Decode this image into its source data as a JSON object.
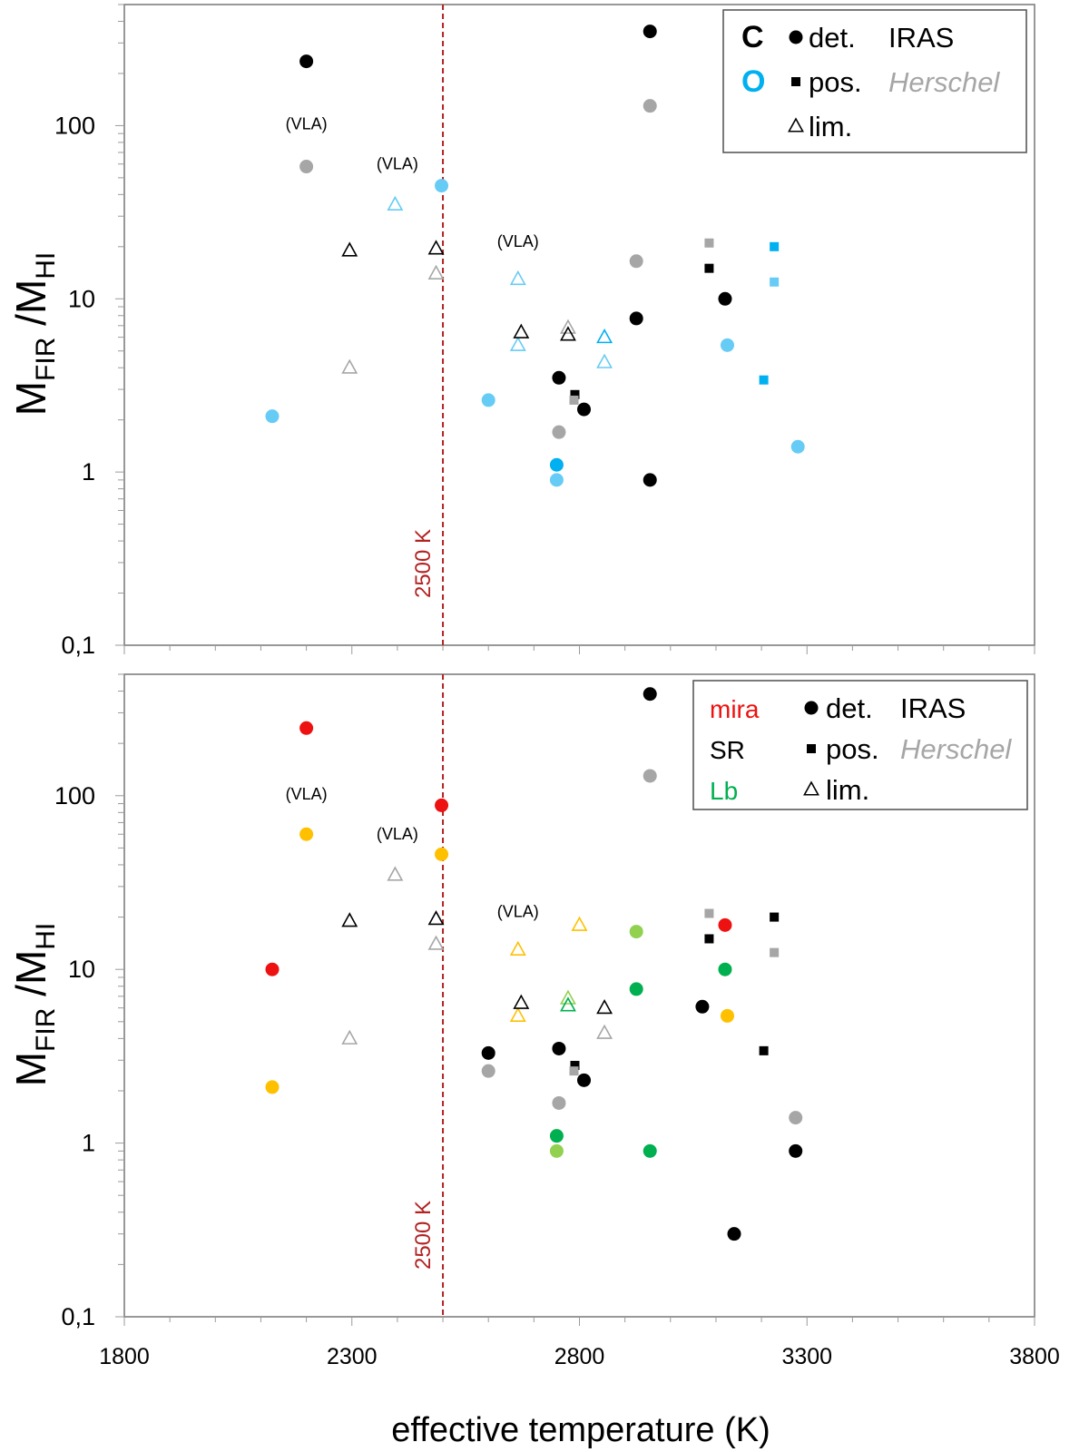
{
  "chart_data": {
    "type": "scatter",
    "xlabel": "effective temperature   (K)",
    "xlim": [
      1800,
      3800
    ],
    "x_ticks": [
      "1800",
      "2300",
      "2800",
      "3300",
      "3800"
    ],
    "ylabel_main": "M",
    "ylabel_sub1": "FIR",
    "ylabel_slash": " /M",
    "ylabel_sub2": "HI",
    "yscale": "log",
    "ylim": [
      0.1,
      500
    ],
    "y_ticks": [
      "0,1",
      "1",
      "10",
      "100"
    ],
    "reference_line": {
      "x": 2500,
      "label": "2500 K",
      "color": "#b22222"
    },
    "colors": {
      "black": "#000000",
      "grey": "#a6a6a6",
      "blue": "#00b0f0",
      "lightblue": "#66ccf5",
      "red": "#ee1111",
      "yellow": "#ffc000",
      "green": "#00b050",
      "lightgreen": "#92d050"
    },
    "panels": [
      {
        "name": "chemistry",
        "legend": {
          "rows": [
            {
              "key": "C",
              "key_color": "#000000",
              "marker": "circle",
              "text": "det.",
              "source": "IRAS",
              "source_style": "normal",
              "source_color": "#000000"
            },
            {
              "key": "O",
              "key_color": "#00b0f0",
              "marker": "square",
              "text": "pos.",
              "source": "Herschel",
              "source_style": "italic",
              "source_color": "#a6a6a6"
            },
            {
              "key": "",
              "key_color": "#000000",
              "marker": "triangle",
              "text": "lim.",
              "source": "",
              "source_style": "normal",
              "source_color": "#000000"
            }
          ]
        },
        "annotations": [
          {
            "text": "(VLA)",
            "x": 2200,
            "y": 95
          },
          {
            "text": "(VLA)",
            "x": 2400,
            "y": 56
          },
          {
            "text": "(VLA)",
            "x": 2665,
            "y": 20
          }
        ],
        "points": [
          {
            "x": 2200,
            "y": 235,
            "m": "circle",
            "c": "black"
          },
          {
            "x": 2200,
            "y": 58,
            "m": "circle",
            "c": "grey"
          },
          {
            "x": 2125,
            "y": 2.1,
            "m": "circle",
            "c": "lightblue"
          },
          {
            "x": 2295,
            "y": 19,
            "m": "triangle",
            "c": "black"
          },
          {
            "x": 2295,
            "y": 4.0,
            "m": "triangle",
            "c": "grey"
          },
          {
            "x": 2395,
            "y": 35,
            "m": "triangle",
            "c": "lightblue"
          },
          {
            "x": 2485,
            "y": 19.5,
            "m": "triangle",
            "c": "black"
          },
          {
            "x": 2485,
            "y": 14,
            "m": "triangle",
            "c": "grey"
          },
          {
            "x": 2497,
            "y": 45,
            "m": "circle",
            "c": "lightblue"
          },
          {
            "x": 2600,
            "y": 2.6,
            "m": "circle",
            "c": "lightblue"
          },
          {
            "x": 2665,
            "y": 13,
            "m": "triangle",
            "c": "lightblue"
          },
          {
            "x": 2665,
            "y": 5.4,
            "m": "triangle",
            "c": "lightblue"
          },
          {
            "x": 2672,
            "y": 6.4,
            "m": "triangle",
            "c": "black"
          },
          {
            "x": 2755,
            "y": 3.5,
            "m": "circle",
            "c": "black"
          },
          {
            "x": 2755,
            "y": 1.7,
            "m": "circle",
            "c": "grey"
          },
          {
            "x": 2750,
            "y": 1.1,
            "m": "circle",
            "c": "blue"
          },
          {
            "x": 2750,
            "y": 0.9,
            "m": "circle",
            "c": "lightblue"
          },
          {
            "x": 2775,
            "y": 6.8,
            "m": "triangle",
            "c": "grey"
          },
          {
            "x": 2775,
            "y": 6.2,
            "m": "triangle",
            "c": "black"
          },
          {
            "x": 2790,
            "y": 2.8,
            "m": "square",
            "c": "black"
          },
          {
            "x": 2788,
            "y": 2.6,
            "m": "square",
            "c": "grey"
          },
          {
            "x": 2810,
            "y": 2.3,
            "m": "circle",
            "c": "black"
          },
          {
            "x": 2855,
            "y": 6.0,
            "m": "triangle",
            "c": "blue"
          },
          {
            "x": 2855,
            "y": 4.3,
            "m": "triangle",
            "c": "lightblue"
          },
          {
            "x": 2925,
            "y": 16.5,
            "m": "circle",
            "c": "grey"
          },
          {
            "x": 2925,
            "y": 7.7,
            "m": "circle",
            "c": "black"
          },
          {
            "x": 2955,
            "y": 350,
            "m": "circle",
            "c": "black"
          },
          {
            "x": 2955,
            "y": 130,
            "m": "circle",
            "c": "grey"
          },
          {
            "x": 2955,
            "y": 0.9,
            "m": "circle",
            "c": "black"
          },
          {
            "x": 3085,
            "y": 21,
            "m": "square",
            "c": "grey"
          },
          {
            "x": 3085,
            "y": 15,
            "m": "square",
            "c": "black"
          },
          {
            "x": 3120,
            "y": 10,
            "m": "circle",
            "c": "black"
          },
          {
            "x": 3125,
            "y": 5.4,
            "m": "circle",
            "c": "lightblue"
          },
          {
            "x": 3205,
            "y": 3.4,
            "m": "square",
            "c": "blue"
          },
          {
            "x": 3228,
            "y": 20,
            "m": "square",
            "c": "blue"
          },
          {
            "x": 3228,
            "y": 12.5,
            "m": "square",
            "c": "lightblue"
          },
          {
            "x": 3280,
            "y": 1.4,
            "m": "circle",
            "c": "lightblue"
          }
        ]
      },
      {
        "name": "variability",
        "legend": {
          "rows": [
            {
              "key": "mira",
              "key_color": "#ee1111",
              "marker": "circle",
              "text": "det.",
              "source": "IRAS",
              "source_style": "normal",
              "source_color": "#000000"
            },
            {
              "key": "SR",
              "key_color": "#000000",
              "marker": "square",
              "text": "pos.",
              "source": "Herschel",
              "source_style": "italic",
              "source_color": "#a6a6a6"
            },
            {
              "key": "Lb",
              "key_color": "#00b050",
              "marker": "triangle",
              "text": "lim.",
              "source": "",
              "source_style": "normal",
              "source_color": "#000000"
            }
          ]
        },
        "annotations": [
          {
            "text": "(VLA)",
            "x": 2200,
            "y": 95
          },
          {
            "text": "(VLA)",
            "x": 2400,
            "y": 56
          },
          {
            "text": "(VLA)",
            "x": 2665,
            "y": 20
          }
        ],
        "points": [
          {
            "x": 2200,
            "y": 245,
            "m": "circle",
            "c": "red"
          },
          {
            "x": 2200,
            "y": 60,
            "m": "circle",
            "c": "yellow"
          },
          {
            "x": 2125,
            "y": 10,
            "m": "circle",
            "c": "red"
          },
          {
            "x": 2125,
            "y": 2.1,
            "m": "circle",
            "c": "yellow"
          },
          {
            "x": 2295,
            "y": 19,
            "m": "triangle",
            "c": "black"
          },
          {
            "x": 2295,
            "y": 4.0,
            "m": "triangle",
            "c": "grey"
          },
          {
            "x": 2395,
            "y": 35,
            "m": "triangle",
            "c": "grey"
          },
          {
            "x": 2485,
            "y": 19.5,
            "m": "triangle",
            "c": "black"
          },
          {
            "x": 2485,
            "y": 14,
            "m": "triangle",
            "c": "grey"
          },
          {
            "x": 2497,
            "y": 88,
            "m": "circle",
            "c": "red"
          },
          {
            "x": 2497,
            "y": 46,
            "m": "circle",
            "c": "yellow"
          },
          {
            "x": 2600,
            "y": 3.3,
            "m": "circle",
            "c": "black"
          },
          {
            "x": 2600,
            "y": 2.6,
            "m": "circle",
            "c": "grey"
          },
          {
            "x": 2665,
            "y": 13,
            "m": "triangle",
            "c": "yellow"
          },
          {
            "x": 2665,
            "y": 5.4,
            "m": "triangle",
            "c": "yellow"
          },
          {
            "x": 2672,
            "y": 6.4,
            "m": "triangle",
            "c": "black"
          },
          {
            "x": 2755,
            "y": 3.5,
            "m": "circle",
            "c": "black"
          },
          {
            "x": 2755,
            "y": 1.7,
            "m": "circle",
            "c": "grey"
          },
          {
            "x": 2750,
            "y": 1.1,
            "m": "circle",
            "c": "green"
          },
          {
            "x": 2750,
            "y": 0.9,
            "m": "circle",
            "c": "lightgreen"
          },
          {
            "x": 2775,
            "y": 6.8,
            "m": "triangle",
            "c": "lightgreen"
          },
          {
            "x": 2775,
            "y": 6.2,
            "m": "triangle",
            "c": "green"
          },
          {
            "x": 2790,
            "y": 2.8,
            "m": "square",
            "c": "black"
          },
          {
            "x": 2788,
            "y": 2.6,
            "m": "square",
            "c": "grey"
          },
          {
            "x": 2800,
            "y": 18,
            "m": "triangle",
            "c": "yellow"
          },
          {
            "x": 2810,
            "y": 2.3,
            "m": "circle",
            "c": "black"
          },
          {
            "x": 2855,
            "y": 6.0,
            "m": "triangle",
            "c": "black"
          },
          {
            "x": 2855,
            "y": 4.3,
            "m": "triangle",
            "c": "grey"
          },
          {
            "x": 2925,
            "y": 16.5,
            "m": "circle",
            "c": "lightgreen"
          },
          {
            "x": 2925,
            "y": 7.7,
            "m": "circle",
            "c": "green"
          },
          {
            "x": 2955,
            "y": 385,
            "m": "circle",
            "c": "black"
          },
          {
            "x": 2955,
            "y": 130,
            "m": "circle",
            "c": "grey"
          },
          {
            "x": 2955,
            "y": 0.9,
            "m": "circle",
            "c": "green"
          },
          {
            "x": 3070,
            "y": 6.1,
            "m": "circle",
            "c": "black"
          },
          {
            "x": 3085,
            "y": 21,
            "m": "square",
            "c": "grey"
          },
          {
            "x": 3085,
            "y": 15,
            "m": "square",
            "c": "black"
          },
          {
            "x": 3120,
            "y": 18,
            "m": "circle",
            "c": "red"
          },
          {
            "x": 3120,
            "y": 10,
            "m": "circle",
            "c": "green"
          },
          {
            "x": 3125,
            "y": 5.4,
            "m": "circle",
            "c": "yellow"
          },
          {
            "x": 3140,
            "y": 0.3,
            "m": "circle",
            "c": "black"
          },
          {
            "x": 3205,
            "y": 3.4,
            "m": "square",
            "c": "black"
          },
          {
            "x": 3228,
            "y": 20,
            "m": "square",
            "c": "black"
          },
          {
            "x": 3228,
            "y": 12.5,
            "m": "square",
            "c": "grey"
          },
          {
            "x": 3275,
            "y": 1.4,
            "m": "circle",
            "c": "grey"
          },
          {
            "x": 3275,
            "y": 0.9,
            "m": "circle",
            "c": "black"
          }
        ]
      }
    ]
  }
}
